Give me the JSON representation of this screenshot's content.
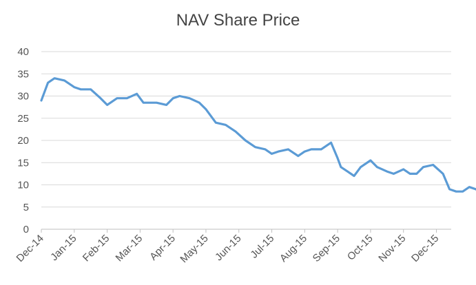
{
  "chart_data": {
    "type": "line",
    "title": "NAV Share Price",
    "xlabel": "",
    "ylabel": "",
    "ylim": [
      0,
      40
    ],
    "yticks": [
      "0",
      "5",
      "10",
      "15",
      "20",
      "25",
      "30",
      "35",
      "40"
    ],
    "xticks": [
      "Dec-14",
      "Jan-15",
      "Feb-15",
      "Mar-15",
      "Apr-15",
      "May-15",
      "Jun-15",
      "Jul-15",
      "Aug-15",
      "Sep-15",
      "Oct-15",
      "Nov-15",
      "Dec-15"
    ],
    "grid": "horizontal",
    "legend": "none",
    "line_color": "#5b9bd5",
    "series": [
      {
        "x": [
          0,
          0.2,
          0.4,
          0.7,
          1.0,
          1.2,
          1.5,
          1.8,
          2.0,
          2.3,
          2.6,
          2.9,
          3.1,
          3.3,
          3.5,
          3.8,
          4.0,
          4.2,
          4.5,
          4.8,
          5.0,
          5.3,
          5.6,
          5.9,
          6.2,
          6.5,
          6.8,
          7.0,
          7.2,
          7.5,
          7.8,
          8.0,
          8.2,
          8.5,
          8.8,
          9.0,
          9.1,
          9.3,
          9.5,
          9.7,
          10.0,
          10.2,
          10.5,
          10.7,
          11.0,
          11.2,
          11.4,
          11.6,
          11.9,
          12.2,
          12.4,
          12.6,
          12.8,
          13.0,
          13.2,
          13.4
        ],
        "y": [
          29,
          33,
          34,
          33.5,
          32,
          31.5,
          31.5,
          29.5,
          28,
          29.5,
          29.5,
          30.5,
          28.5,
          28.5,
          28.5,
          28,
          29.5,
          30,
          29.5,
          28.5,
          27,
          24,
          23.5,
          22,
          20,
          18.5,
          18,
          17,
          17.5,
          18,
          16.5,
          17.5,
          18,
          18,
          19.5,
          16,
          14,
          13,
          12,
          14,
          15.5,
          14,
          13,
          12.5,
          13.5,
          12.5,
          12.5,
          14,
          14.5,
          12.5,
          9,
          8.5,
          8.5,
          9.5,
          9,
          8
        ]
      }
    ]
  }
}
